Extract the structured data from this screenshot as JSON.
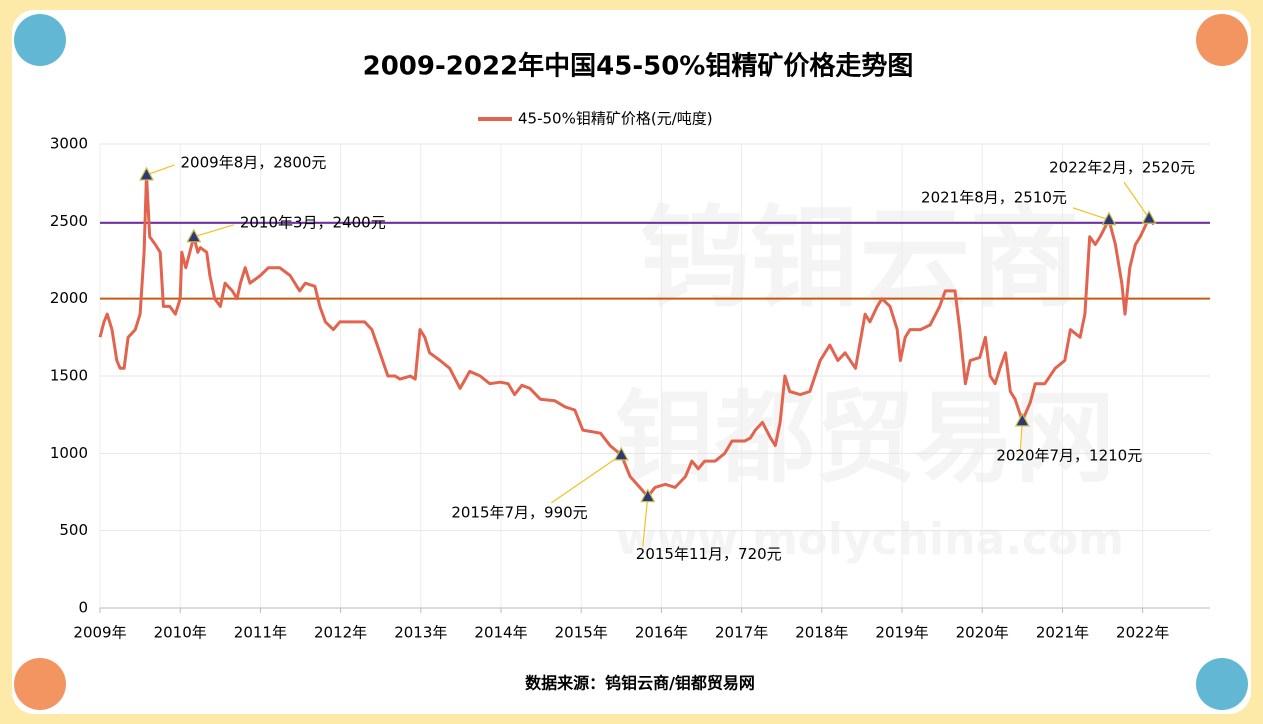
{
  "chart_data": {
    "type": "line",
    "title": "2009-2022年中国45-50%钼精矿价格走势图",
    "source": "数据来源：钨钼云商/钼都贸易网",
    "watermark": [
      "钨钼云商",
      "钼都贸易网",
      "www.molychina.com"
    ],
    "x": [
      2009.0,
      2009.05,
      2009.09,
      2009.15,
      2009.21,
      2009.25,
      2009.3,
      2009.35,
      2009.44,
      2009.5,
      2009.55,
      2009.58,
      2009.62,
      2009.69,
      2009.75,
      2009.79,
      2009.87,
      2009.94,
      2010.0,
      2010.02,
      2010.07,
      2010.17,
      2010.22,
      2010.25,
      2010.33,
      2010.37,
      2010.43,
      2010.5,
      2010.56,
      2010.65,
      2010.71,
      2010.75,
      2010.81,
      2010.87,
      2011.0,
      2011.1,
      2011.24,
      2011.37,
      2011.49,
      2011.56,
      2011.68,
      2011.74,
      2011.81,
      2011.91,
      2011.99,
      2012.3,
      2012.39,
      2012.49,
      2012.59,
      2012.68,
      2012.74,
      2012.87,
      2012.93,
      2012.99,
      2013.05,
      2013.11,
      2013.24,
      2013.36,
      2013.49,
      2013.61,
      2013.74,
      2013.86,
      2013.99,
      2014.09,
      2014.17,
      2014.26,
      2014.36,
      2014.49,
      2014.67,
      2014.8,
      2014.92,
      2015.02,
      2015.24,
      2015.36,
      2015.5,
      2015.61,
      2015.73,
      2015.83,
      2015.92,
      2016.05,
      2016.17,
      2016.3,
      2016.38,
      2016.46,
      2016.54,
      2016.67,
      2016.79,
      2016.88,
      2017.04,
      2017.11,
      2017.17,
      2017.26,
      2017.36,
      2017.42,
      2017.48,
      2017.54,
      2017.6,
      2017.73,
      2017.85,
      2017.98,
      2018.04,
      2018.1,
      2018.2,
      2018.29,
      2018.42,
      2018.54,
      2018.6,
      2018.69,
      2018.75,
      2018.85,
      2018.94,
      2018.98,
      2019.04,
      2019.1,
      2019.23,
      2019.35,
      2019.47,
      2019.54,
      2019.66,
      2019.72,
      2019.79,
      2019.85,
      2019.97,
      2020.04,
      2020.1,
      2020.16,
      2020.22,
      2020.29,
      2020.35,
      2020.41,
      2020.5,
      2020.6,
      2020.66,
      2020.78,
      2020.91,
      2021.03,
      2021.1,
      2021.22,
      2021.28,
      2021.34,
      2021.41,
      2021.47,
      2021.58,
      2021.66,
      2021.74,
      2021.78,
      2021.84,
      2021.91,
      2021.97,
      2022.08,
      2022.14
    ],
    "series": [
      {
        "name": "45-50%钼精矿价格(元/吨度)",
        "color": "#e2634e",
        "values": [
          1750,
          1850,
          1900,
          1800,
          1600,
          1550,
          1550,
          1750,
          1800,
          1900,
          2300,
          2800,
          2400,
          2350,
          2300,
          1950,
          1950,
          1900,
          2000,
          2300,
          2200,
          2400,
          2300,
          2330,
          2300,
          2150,
          2000,
          1950,
          2100,
          2050,
          2000,
          2100,
          2200,
          2100,
          2150,
          2200,
          2200,
          2150,
          2050,
          2100,
          2080,
          1950,
          1850,
          1800,
          1850,
          1850,
          1800,
          1650,
          1500,
          1500,
          1480,
          1500,
          1480,
          1800,
          1750,
          1650,
          1600,
          1550,
          1420,
          1530,
          1500,
          1450,
          1460,
          1450,
          1380,
          1440,
          1420,
          1350,
          1340,
          1300,
          1280,
          1150,
          1130,
          1050,
          990,
          850,
          780,
          720,
          780,
          800,
          780,
          850,
          950,
          900,
          950,
          950,
          1000,
          1080,
          1080,
          1100,
          1150,
          1200,
          1100,
          1050,
          1200,
          1500,
          1400,
          1380,
          1400,
          1600,
          1650,
          1700,
          1600,
          1650,
          1550,
          1900,
          1850,
          1950,
          2000,
          1950,
          1800,
          1600,
          1750,
          1800,
          1800,
          1830,
          1950,
          2050,
          2050,
          1800,
          1450,
          1600,
          1620,
          1750,
          1500,
          1450,
          1550,
          1650,
          1400,
          1350,
          1210,
          1330,
          1450,
          1450,
          1550,
          1600,
          1800,
          1750,
          1900,
          2400,
          2350,
          2400,
          2510,
          2350,
          2100,
          1900,
          2200,
          2350,
          2400,
          2520,
          2480
        ]
      }
    ],
    "annotations": [
      {
        "label": "2009年8月，2800元",
        "x": 2009.58,
        "y": 2800
      },
      {
        "label": "2010年3月，2400元",
        "x": 2010.17,
        "y": 2400
      },
      {
        "label": "2015年7月，990元",
        "x": 2015.5,
        "y": 990
      },
      {
        "label": "2015年11月，720元",
        "x": 2015.83,
        "y": 720
      },
      {
        "label": "2020年7月，1210元",
        "x": 2020.5,
        "y": 1210
      },
      {
        "label": "2021年8月，2510元",
        "x": 2021.58,
        "y": 2510
      },
      {
        "label": "2022年2月，2520元",
        "x": 2022.08,
        "y": 2520
      }
    ],
    "reference_lines": [
      {
        "value": 2490,
        "color": "#7030a0"
      },
      {
        "value": 2000,
        "color": "#c55a11"
      }
    ],
    "xlim": [
      2009,
      2022.84
    ],
    "xticks": [
      {
        "value": 2009,
        "label": "2009年"
      },
      {
        "value": 2010,
        "label": "2010年"
      },
      {
        "value": 2011,
        "label": "2011年"
      },
      {
        "value": 2012,
        "label": "2012年"
      },
      {
        "value": 2013,
        "label": "2013年"
      },
      {
        "value": 2014,
        "label": "2014年"
      },
      {
        "value": 2015,
        "label": "2015年"
      },
      {
        "value": 2016,
        "label": "2016年"
      },
      {
        "value": 2017,
        "label": "2017年"
      },
      {
        "value": 2018,
        "label": "2018年"
      },
      {
        "value": 2019,
        "label": "2019年"
      },
      {
        "value": 2020,
        "label": "2020年"
      },
      {
        "value": 2021,
        "label": "2021年"
      },
      {
        "value": 2022,
        "label": "2022年"
      }
    ],
    "ylim": [
      0,
      3000
    ],
    "yticks": [
      0,
      500,
      1000,
      1500,
      2000,
      2500,
      3000
    ],
    "grid": true
  }
}
